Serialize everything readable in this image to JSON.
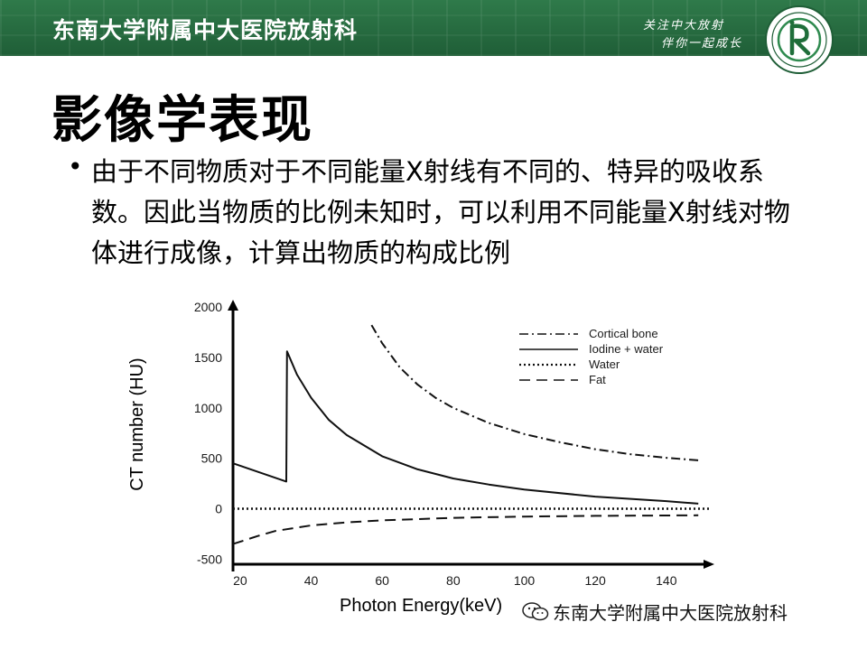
{
  "header": {
    "institution": "东南大学附属中大医院放射科",
    "slogan_line1": "关注中大放射",
    "slogan_line2": "伴你一起成长",
    "brand_color": "#246b3f"
  },
  "slide": {
    "title": "影像学表现",
    "bullet": "由于不同物质对于不同能量X射线有不同的、特异的吸收系数。因此当物质的比例未知时，可以利用不同能量X射线对物体进行成像，计算出物质的构成比例"
  },
  "chart_data": {
    "type": "line",
    "xlabel": "Photon Energy(keV)",
    "ylabel": "CT number (HU)",
    "xlim": [
      18,
      152
    ],
    "ylim": [
      -550,
      2000
    ],
    "x_ticks": [
      20,
      40,
      60,
      80,
      100,
      120,
      140
    ],
    "y_ticks": [
      2000,
      1500,
      1000,
      500,
      0,
      -500
    ],
    "grid": false,
    "legend_position": "top-right",
    "series": [
      {
        "name": "Cortical bone",
        "style": "dashdot",
        "x": [
          57,
          60,
          65,
          70,
          75,
          80,
          90,
          100,
          110,
          120,
          130,
          140,
          149
        ],
        "y": [
          1820,
          1640,
          1400,
          1230,
          1100,
          1000,
          850,
          740,
          660,
          590,
          540,
          505,
          480
        ]
      },
      {
        "name": "Iodine + water",
        "style": "solid",
        "x": [
          18,
          33,
          33.2,
          36,
          40,
          45,
          50,
          60,
          70,
          80,
          90,
          100,
          120,
          140,
          149
        ],
        "y": [
          450,
          270,
          1560,
          1330,
          1100,
          880,
          730,
          520,
          390,
          300,
          240,
          190,
          120,
          75,
          50
        ]
      },
      {
        "name": "Water",
        "style": "dotted",
        "x": [
          18,
          152
        ],
        "y": [
          0,
          0
        ]
      },
      {
        "name": "Fat",
        "style": "dashed",
        "x": [
          18,
          25,
          30,
          40,
          50,
          60,
          80,
          100,
          120,
          149
        ],
        "y": [
          -350,
          -270,
          -220,
          -165,
          -135,
          -115,
          -90,
          -78,
          -70,
          -65
        ]
      }
    ]
  },
  "watermark": {
    "text": "东南大学附属中大医院放射科"
  }
}
